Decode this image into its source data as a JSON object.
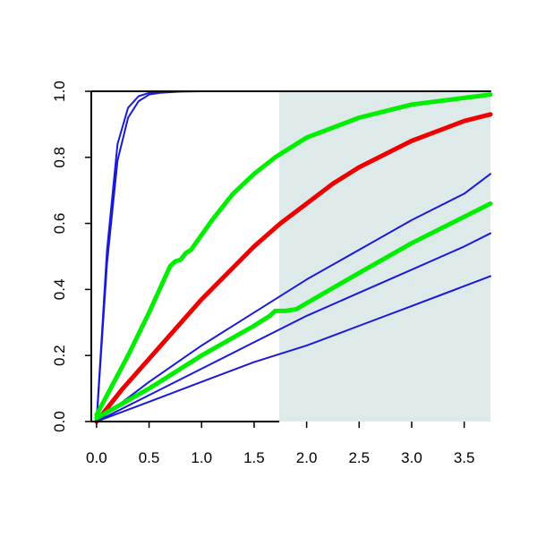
{
  "chart_data": {
    "type": "line",
    "title": "",
    "xlabel": "",
    "ylabel": "",
    "xlim": [
      -0.05,
      3.75
    ],
    "ylim": [
      0,
      1.0
    ],
    "x_ticks": [
      "0.0",
      "0.5",
      "1.0",
      "1.5",
      "2.0",
      "2.5",
      "3.0",
      "3.5"
    ],
    "y_ticks": [
      "0.0",
      "0.2",
      "0.4",
      "0.6",
      "0.8",
      "1.0"
    ],
    "shaded_region": {
      "x_start": 1.74,
      "x_end": 3.75,
      "color": "#deeaea"
    },
    "grid": false,
    "legend": "none",
    "series": [
      {
        "color": "#1a1ad6",
        "width": 2,
        "x": [
          0,
          0.1,
          0.2,
          0.3,
          0.4,
          0.5,
          0.6,
          0.8,
          1.0,
          1.5,
          2.0,
          3.0,
          3.75
        ],
        "y": [
          0,
          0.52,
          0.84,
          0.95,
          0.985,
          0.995,
          0.998,
          1.0,
          1.0,
          1.0,
          1.0,
          1.0,
          1.0
        ]
      },
      {
        "color": "#1a1ad6",
        "width": 2,
        "x": [
          0,
          0.1,
          0.2,
          0.3,
          0.4,
          0.5,
          0.6,
          0.8,
          1.0,
          1.5,
          2.0,
          3.0,
          3.75
        ],
        "y": [
          0,
          0.48,
          0.79,
          0.92,
          0.97,
          0.99,
          0.995,
          0.999,
          1.0,
          1.0,
          1.0,
          1.0,
          1.0
        ]
      },
      {
        "color": "#00ee00",
        "width": 5,
        "x": [
          0,
          0.3,
          0.5,
          0.7,
          0.75,
          0.8,
          0.85,
          0.9,
          1.1,
          1.3,
          1.5,
          1.7,
          2.0,
          2.5,
          3.0,
          3.5,
          3.75
        ],
        "y": [
          0.02,
          0.2,
          0.33,
          0.47,
          0.485,
          0.49,
          0.51,
          0.52,
          0.61,
          0.69,
          0.75,
          0.8,
          0.86,
          0.92,
          0.96,
          0.98,
          0.99
        ]
      },
      {
        "color": "#ee0000",
        "width": 5,
        "x": [
          0,
          0.25,
          0.5,
          0.75,
          1.0,
          1.25,
          1.5,
          1.75,
          2.0,
          2.25,
          2.5,
          2.75,
          3.0,
          3.25,
          3.5,
          3.75
        ],
        "y": [
          0.0,
          0.1,
          0.19,
          0.28,
          0.37,
          0.45,
          0.53,
          0.6,
          0.66,
          0.72,
          0.77,
          0.81,
          0.85,
          0.88,
          0.91,
          0.93
        ]
      },
      {
        "color": "#1a1ad6",
        "width": 2,
        "x": [
          0,
          0.5,
          1.0,
          1.5,
          2.0,
          2.5,
          3.0,
          3.5,
          3.75
        ],
        "y": [
          0.0,
          0.12,
          0.23,
          0.33,
          0.43,
          0.52,
          0.61,
          0.69,
          0.75
        ]
      },
      {
        "color": "#00ee00",
        "width": 5,
        "x": [
          0,
          0.5,
          1.0,
          1.5,
          1.65,
          1.7,
          1.8,
          1.9,
          2.5,
          3.0,
          3.5,
          3.75
        ],
        "y": [
          0.01,
          0.1,
          0.2,
          0.29,
          0.32,
          0.335,
          0.335,
          0.34,
          0.45,
          0.54,
          0.62,
          0.66
        ]
      },
      {
        "color": "#1a1ad6",
        "width": 2,
        "x": [
          0,
          0.5,
          1.0,
          1.5,
          2.0,
          2.5,
          3.0,
          3.5,
          3.75
        ],
        "y": [
          0.0,
          0.08,
          0.16,
          0.24,
          0.32,
          0.39,
          0.46,
          0.53,
          0.57
        ]
      },
      {
        "color": "#1a1ad6",
        "width": 2,
        "x": [
          0,
          0.5,
          1.0,
          1.5,
          2.0,
          2.5,
          3.0,
          3.5,
          3.75
        ],
        "y": [
          0.0,
          0.06,
          0.12,
          0.18,
          0.23,
          0.29,
          0.35,
          0.41,
          0.44
        ]
      }
    ]
  }
}
